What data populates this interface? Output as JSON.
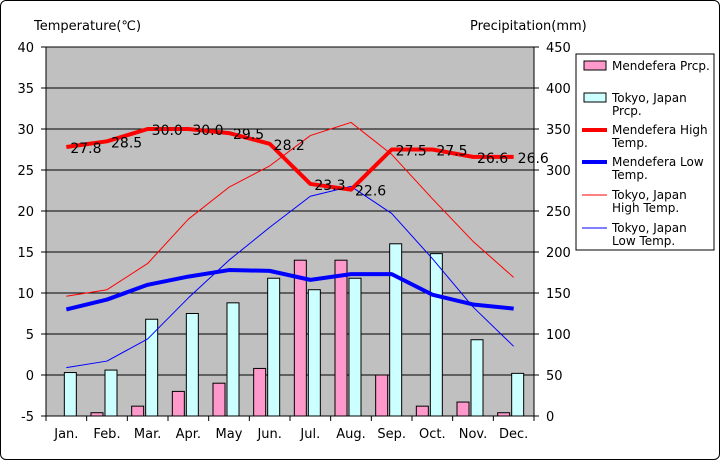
{
  "chart_data": {
    "type": "bar+line",
    "title": "",
    "left_axis_label": "Temperature(℃)",
    "right_axis_label": "Precipitation(mm)",
    "categories": [
      "Jan.",
      "Feb.",
      "Mar.",
      "Apr.",
      "May",
      "Jun.",
      "Jul.",
      "Aug.",
      "Sep.",
      "Oct.",
      "Nov.",
      "Dec."
    ],
    "left_ylim": [
      -5,
      40
    ],
    "left_ticks": [
      -5,
      0,
      5,
      10,
      15,
      20,
      25,
      30,
      35,
      40
    ],
    "right_ylim": [
      0,
      450
    ],
    "right_ticks": [
      0,
      50,
      100,
      150,
      200,
      250,
      300,
      350,
      400,
      450
    ],
    "series": [
      {
        "name": "Mendefera Prcp.",
        "kind": "bar",
        "axis": "right",
        "color": "#ff99cc",
        "values": [
          0,
          4,
          12,
          30,
          40,
          58,
          190,
          190,
          50,
          12,
          17,
          4
        ]
      },
      {
        "name": "Tokyo, Japan Prcp.",
        "kind": "bar",
        "axis": "right",
        "color": "#ccffff",
        "values": [
          53,
          56,
          118,
          125,
          138,
          168,
          154,
          168,
          210,
          198,
          93,
          52
        ]
      },
      {
        "name": "Mendefera High Temp.",
        "kind": "line",
        "axis": "left",
        "color": "#ff0000",
        "width": 4,
        "show_labels": true,
        "values": [
          27.8,
          28.5,
          30.0,
          30.0,
          29.5,
          28.2,
          23.3,
          22.6,
          27.5,
          27.5,
          26.6,
          26.6
        ]
      },
      {
        "name": "Mendefera Low Temp.",
        "kind": "line",
        "axis": "left",
        "color": "#0000ff",
        "width": 4,
        "show_labels": false,
        "values": [
          8.0,
          9.2,
          11.0,
          12.0,
          12.8,
          12.7,
          11.6,
          12.3,
          12.3,
          9.8,
          8.6,
          8.1
        ]
      },
      {
        "name": "Tokyo, Japan High Temp.",
        "kind": "line",
        "axis": "left",
        "color": "#ff0000",
        "width": 1,
        "show_labels": false,
        "values": [
          9.6,
          10.4,
          13.6,
          19.0,
          22.9,
          25.5,
          29.2,
          30.8,
          26.9,
          21.5,
          16.3,
          11.9
        ]
      },
      {
        "name": "Tokyo, Japan Low Temp.",
        "kind": "line",
        "axis": "left",
        "color": "#0000ff",
        "width": 1,
        "show_labels": false,
        "values": [
          0.9,
          1.7,
          4.4,
          9.4,
          14.0,
          18.0,
          21.8,
          23.0,
          19.7,
          14.2,
          8.3,
          3.5
        ]
      }
    ],
    "legend_placement": "right",
    "legend_labels": [
      [
        "Mendefera Prcp."
      ],
      [
        "Tokyo, Japan",
        "Prcp."
      ],
      [
        "Mendefera High",
        "Temp."
      ],
      [
        "Mendefera Low",
        "Temp."
      ],
      [
        "Tokyo, Japan",
        "High Temp."
      ],
      [
        "Tokyo, Japan",
        "Low Temp."
      ]
    ],
    "plot_background": "#c0c0c0",
    "grid": true
  }
}
